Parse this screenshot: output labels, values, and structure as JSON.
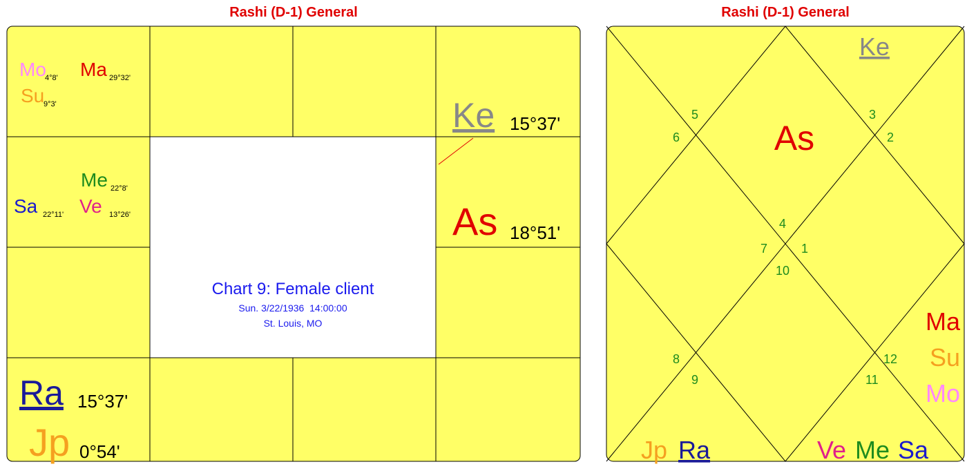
{
  "left_chart": {
    "title": "Rashi (D-1) General",
    "center": {
      "title": "Chart 9: Female client",
      "date": "Sun. 3/22/1936  14:00:00",
      "place": "St. Louis, MO"
    },
    "cells": [
      {
        "planets": [
          {
            "name": "Mo",
            "degree": "4°8'"
          },
          {
            "name": "Ma",
            "degree": "29°32'"
          },
          {
            "name": "Su",
            "degree": "9°3'"
          }
        ]
      },
      {
        "planets": [
          {
            "name": "Ke",
            "degree": "15°37'"
          }
        ]
      },
      {
        "planets": [
          {
            "name": "Me",
            "degree": "22°8'"
          },
          {
            "name": "Sa",
            "degree": "22°11'"
          },
          {
            "name": "Ve",
            "degree": "13°26'"
          }
        ]
      },
      {
        "planets": [
          {
            "name": "As",
            "degree": "18°51'"
          }
        ]
      },
      {
        "planets": [
          {
            "name": "Ra",
            "degree": "15°37'"
          },
          {
            "name": "Jp",
            "degree": "0°54'"
          }
        ]
      }
    ]
  },
  "right_chart": {
    "title": "Rashi (D-1) General",
    "houses": [
      "1",
      "2",
      "3",
      "4",
      "5",
      "6",
      "7",
      "8",
      "9",
      "10",
      "11",
      "12"
    ],
    "planets": [
      "Ke",
      "As",
      "Ma",
      "Su",
      "Mo",
      "Jp",
      "Ra",
      "Ve",
      "Me",
      "Sa"
    ]
  }
}
